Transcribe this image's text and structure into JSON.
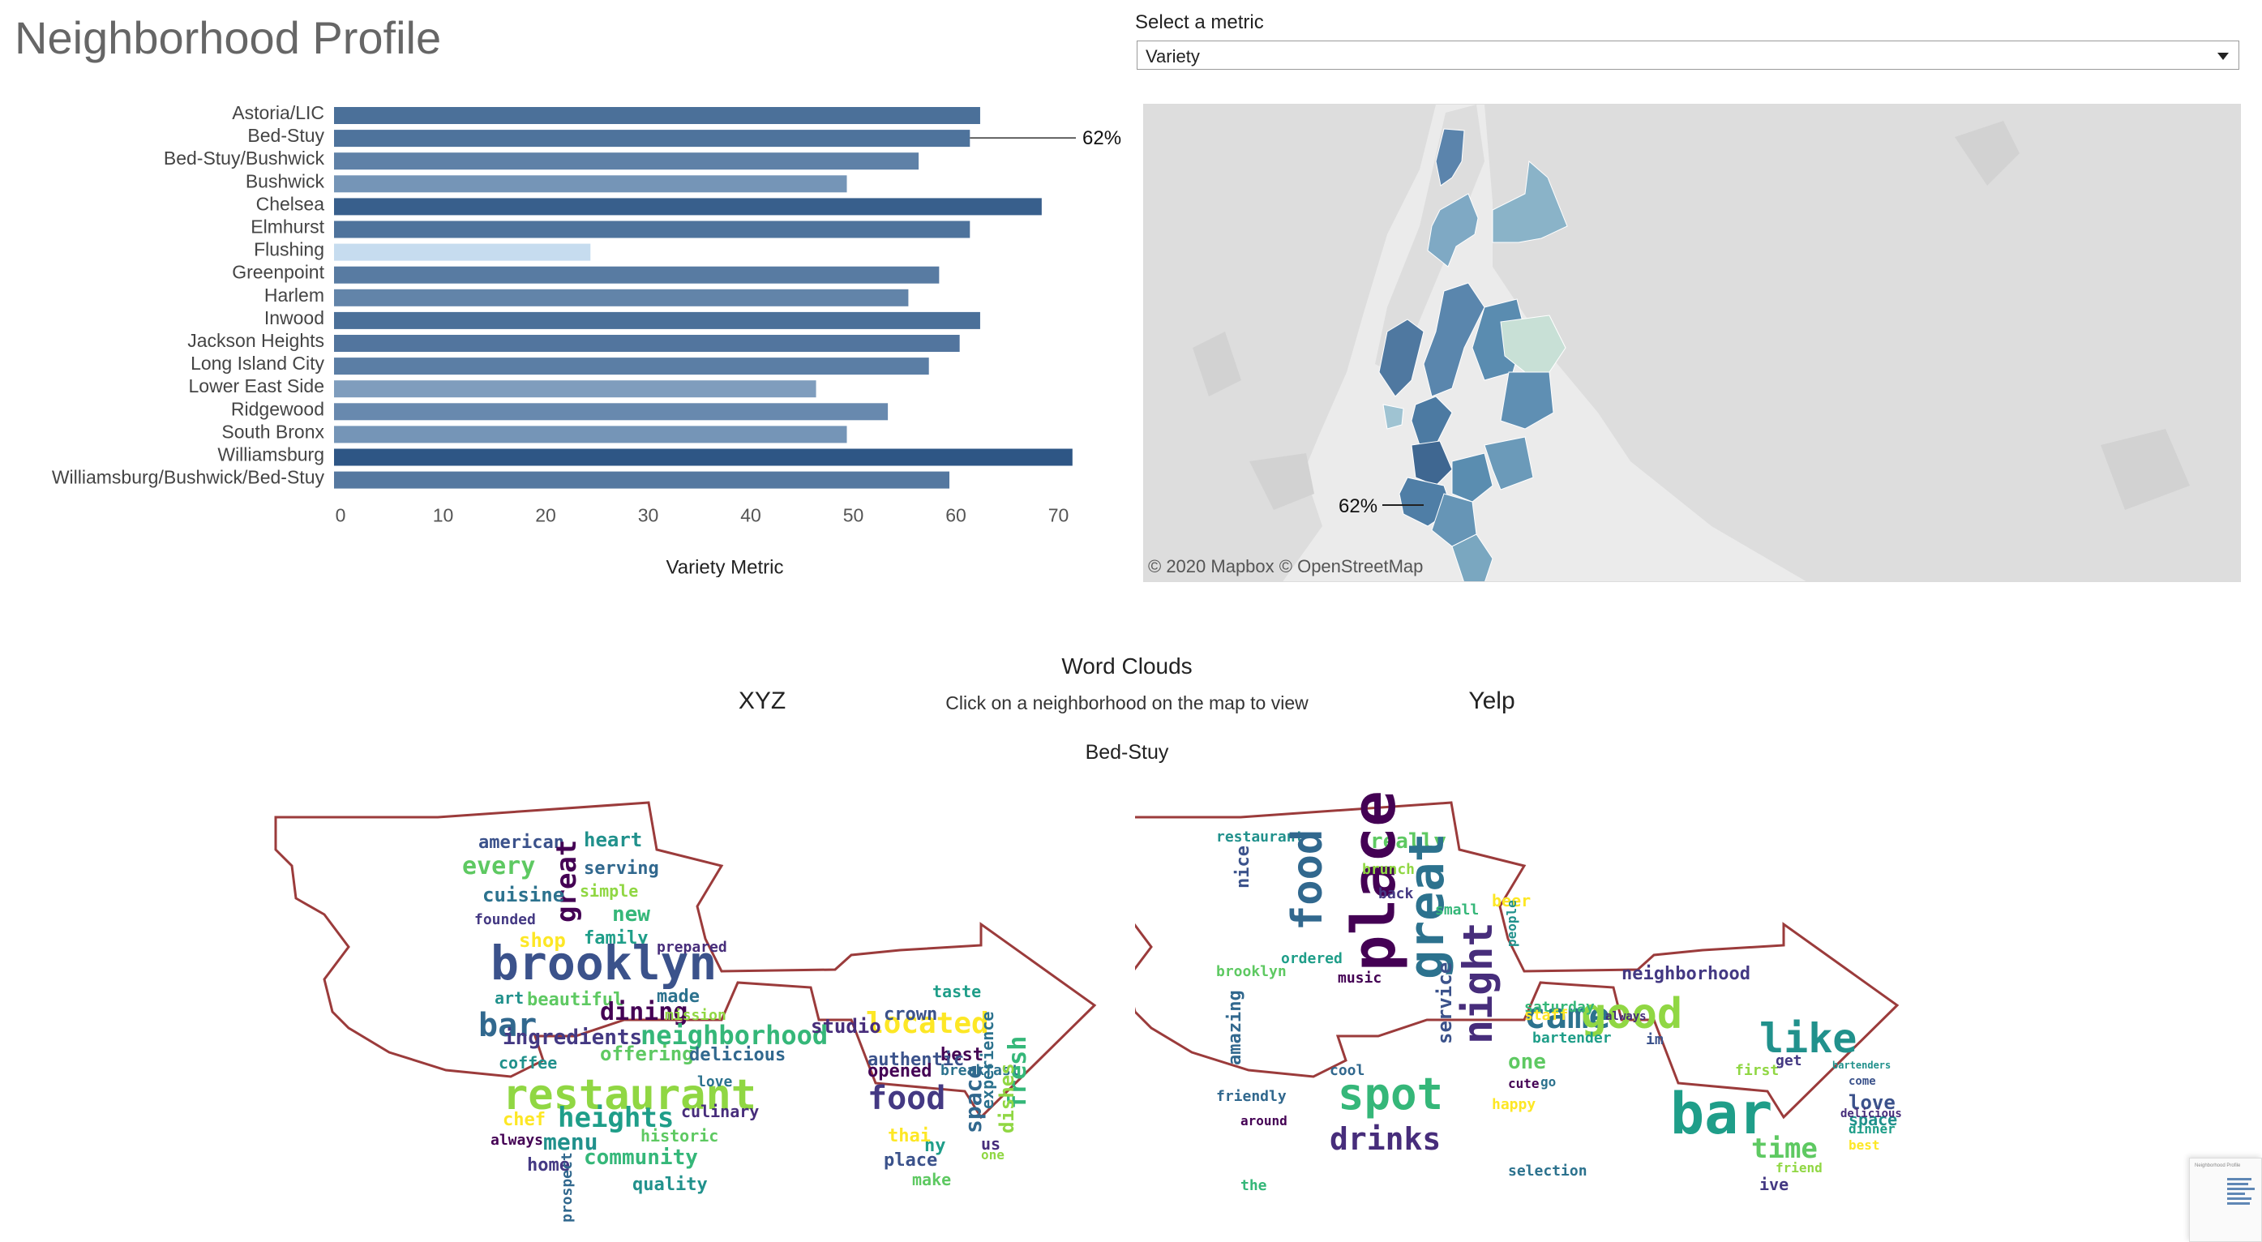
{
  "header": {
    "title": "Neighborhood Profile"
  },
  "metric": {
    "label": "Select a metric",
    "selected": "Variety"
  },
  "chart_data": {
    "type": "bar",
    "orientation": "horizontal",
    "categories": [
      "Astoria/LIC",
      "Bed-Stuy",
      "Bed-Stuy/Bushwick",
      "Bushwick",
      "Chelsea",
      "Elmhurst",
      "Flushing",
      "Greenpoint",
      "Harlem",
      "Inwood",
      "Jackson Heights",
      "Long Island City",
      "Lower East Side",
      "Ridgewood",
      "South Bronx",
      "Williamsburg",
      "Williamsburg/Bushwick/Bed-Stuy"
    ],
    "values": [
      63,
      62,
      57,
      50,
      69,
      62,
      25,
      59,
      56,
      63,
      61,
      58,
      47,
      54,
      50,
      72,
      60
    ],
    "xlabel": "Variety Metric",
    "ylabel": "",
    "xlim": [
      0,
      75
    ],
    "xticks": [
      0,
      10,
      20,
      30,
      40,
      50,
      60,
      70
    ],
    "annotation": {
      "category": "Bed-Stuy",
      "text": "62%"
    },
    "grid": false,
    "color_min": "#c6dcef",
    "color_max": "#2e5685"
  },
  "map": {
    "annotation": "62%",
    "attribution": "© 2020 Mapbox  © OpenStreetMap"
  },
  "wordclouds": {
    "title": "Word Clouds",
    "subtitle": "Click on a neighborhood on the map to view",
    "left_label": "XYZ",
    "right_label": "Yelp",
    "neighborhood": "Bed-Stuy",
    "left_words": [
      {
        "t": "american",
        "s": 22
      },
      {
        "t": "heart",
        "s": 24
      },
      {
        "t": "every",
        "s": 30
      },
      {
        "t": "serving",
        "s": 22
      },
      {
        "t": "great",
        "s": 34
      },
      {
        "t": "cuisine",
        "s": 24
      },
      {
        "t": "simple",
        "s": 20
      },
      {
        "t": "founded",
        "s": 18
      },
      {
        "t": "new",
        "s": 26
      },
      {
        "t": "shop",
        "s": 24
      },
      {
        "t": "family",
        "s": 22
      },
      {
        "t": "prepared",
        "s": 18
      },
      {
        "t": "brooklyn",
        "s": 58
      },
      {
        "t": "art",
        "s": 20
      },
      {
        "t": "beautiful",
        "s": 22
      },
      {
        "t": "bar",
        "s": 40
      },
      {
        "t": "dining",
        "s": 30
      },
      {
        "t": "made",
        "s": 22
      },
      {
        "t": "mission",
        "s": 18
      },
      {
        "t": "ingredients",
        "s": 26
      },
      {
        "t": "neighborhood",
        "s": 32
      },
      {
        "t": "located",
        "s": 36
      },
      {
        "t": "taste",
        "s": 20
      },
      {
        "t": "studio",
        "s": 24
      },
      {
        "t": "crown",
        "s": 22
      },
      {
        "t": "coffee",
        "s": 20
      },
      {
        "t": "offering",
        "s": 24
      },
      {
        "t": "delicious",
        "s": 22
      },
      {
        "t": "best",
        "s": 22
      },
      {
        "t": "breakfast",
        "s": 18
      },
      {
        "t": "restaurant",
        "s": 52
      },
      {
        "t": "food",
        "s": 40
      },
      {
        "t": "fresh",
        "s": 30
      },
      {
        "t": "chef",
        "s": 22
      },
      {
        "t": "heights",
        "s": 34
      },
      {
        "t": "culinary",
        "s": 20
      },
      {
        "t": "authentic",
        "s": 22
      },
      {
        "t": "menu",
        "s": 28
      },
      {
        "t": "historic",
        "s": 20
      },
      {
        "t": "space",
        "s": 28
      },
      {
        "t": "opened",
        "s": 22
      },
      {
        "t": "experience",
        "s": 20
      },
      {
        "t": "dishes",
        "s": 24
      },
      {
        "t": "home",
        "s": 22
      },
      {
        "t": "community",
        "s": 26
      },
      {
        "t": "thai",
        "s": 22
      },
      {
        "t": "ny",
        "s": 22
      },
      {
        "t": "us",
        "s": 20
      },
      {
        "t": "place",
        "s": 22
      },
      {
        "t": "quality",
        "s": 22
      },
      {
        "t": "make",
        "s": 20
      },
      {
        "t": "prospect",
        "s": 18
      },
      {
        "t": "always",
        "s": 18
      },
      {
        "t": "love",
        "s": 18
      },
      {
        "t": "one",
        "s": 16
      }
    ],
    "right_words": [
      {
        "t": "nice",
        "s": 22
      },
      {
        "t": "restaurant",
        "s": 18
      },
      {
        "t": "really",
        "s": 26
      },
      {
        "t": "food",
        "s": 52
      },
      {
        "t": "place",
        "s": 74
      },
      {
        "t": "great",
        "s": 60
      },
      {
        "t": "brunch",
        "s": 18
      },
      {
        "t": "back",
        "s": 18
      },
      {
        "t": "small",
        "s": 18
      },
      {
        "t": "beer",
        "s": 20
      },
      {
        "t": "ordered",
        "s": 18
      },
      {
        "t": "night",
        "s": 50
      },
      {
        "t": "service",
        "s": 24
      },
      {
        "t": "people",
        "s": 16
      },
      {
        "t": "brooklyn",
        "s": 18
      },
      {
        "t": "amazing",
        "s": 22
      },
      {
        "t": "music",
        "s": 18
      },
      {
        "t": "came",
        "s": 44
      },
      {
        "t": "good",
        "s": 52
      },
      {
        "t": "neighborhood",
        "s": 22
      },
      {
        "t": "saturday",
        "s": 18
      },
      {
        "t": "staff",
        "s": 18
      },
      {
        "t": "bartender",
        "s": 18
      },
      {
        "t": "always",
        "s": 14
      },
      {
        "t": "im",
        "s": 18
      },
      {
        "t": "like",
        "s": 50
      },
      {
        "t": "one",
        "s": 26
      },
      {
        "t": "cool",
        "s": 18
      },
      {
        "t": "cute",
        "s": 16
      },
      {
        "t": "go",
        "s": 16
      },
      {
        "t": "first",
        "s": 18
      },
      {
        "t": "get",
        "s": 18
      },
      {
        "t": "spot",
        "s": 54
      },
      {
        "t": "happy",
        "s": 18
      },
      {
        "t": "bar",
        "s": 70
      },
      {
        "t": "drinks",
        "s": 38
      },
      {
        "t": "love",
        "s": 24
      },
      {
        "t": "space",
        "s": 20
      },
      {
        "t": "time",
        "s": 34
      },
      {
        "t": "friendly",
        "s": 18
      },
      {
        "t": "around",
        "s": 16
      },
      {
        "t": "selection",
        "s": 18
      },
      {
        "t": "friend",
        "s": 16
      },
      {
        "t": "ive",
        "s": 20
      },
      {
        "t": "the",
        "s": 18
      },
      {
        "t": "best",
        "s": 16
      },
      {
        "t": "dinner",
        "s": 16
      },
      {
        "t": "delicious",
        "s": 14
      },
      {
        "t": "come",
        "s": 14
      },
      {
        "t": "bartenders",
        "s": 12
      }
    ]
  }
}
